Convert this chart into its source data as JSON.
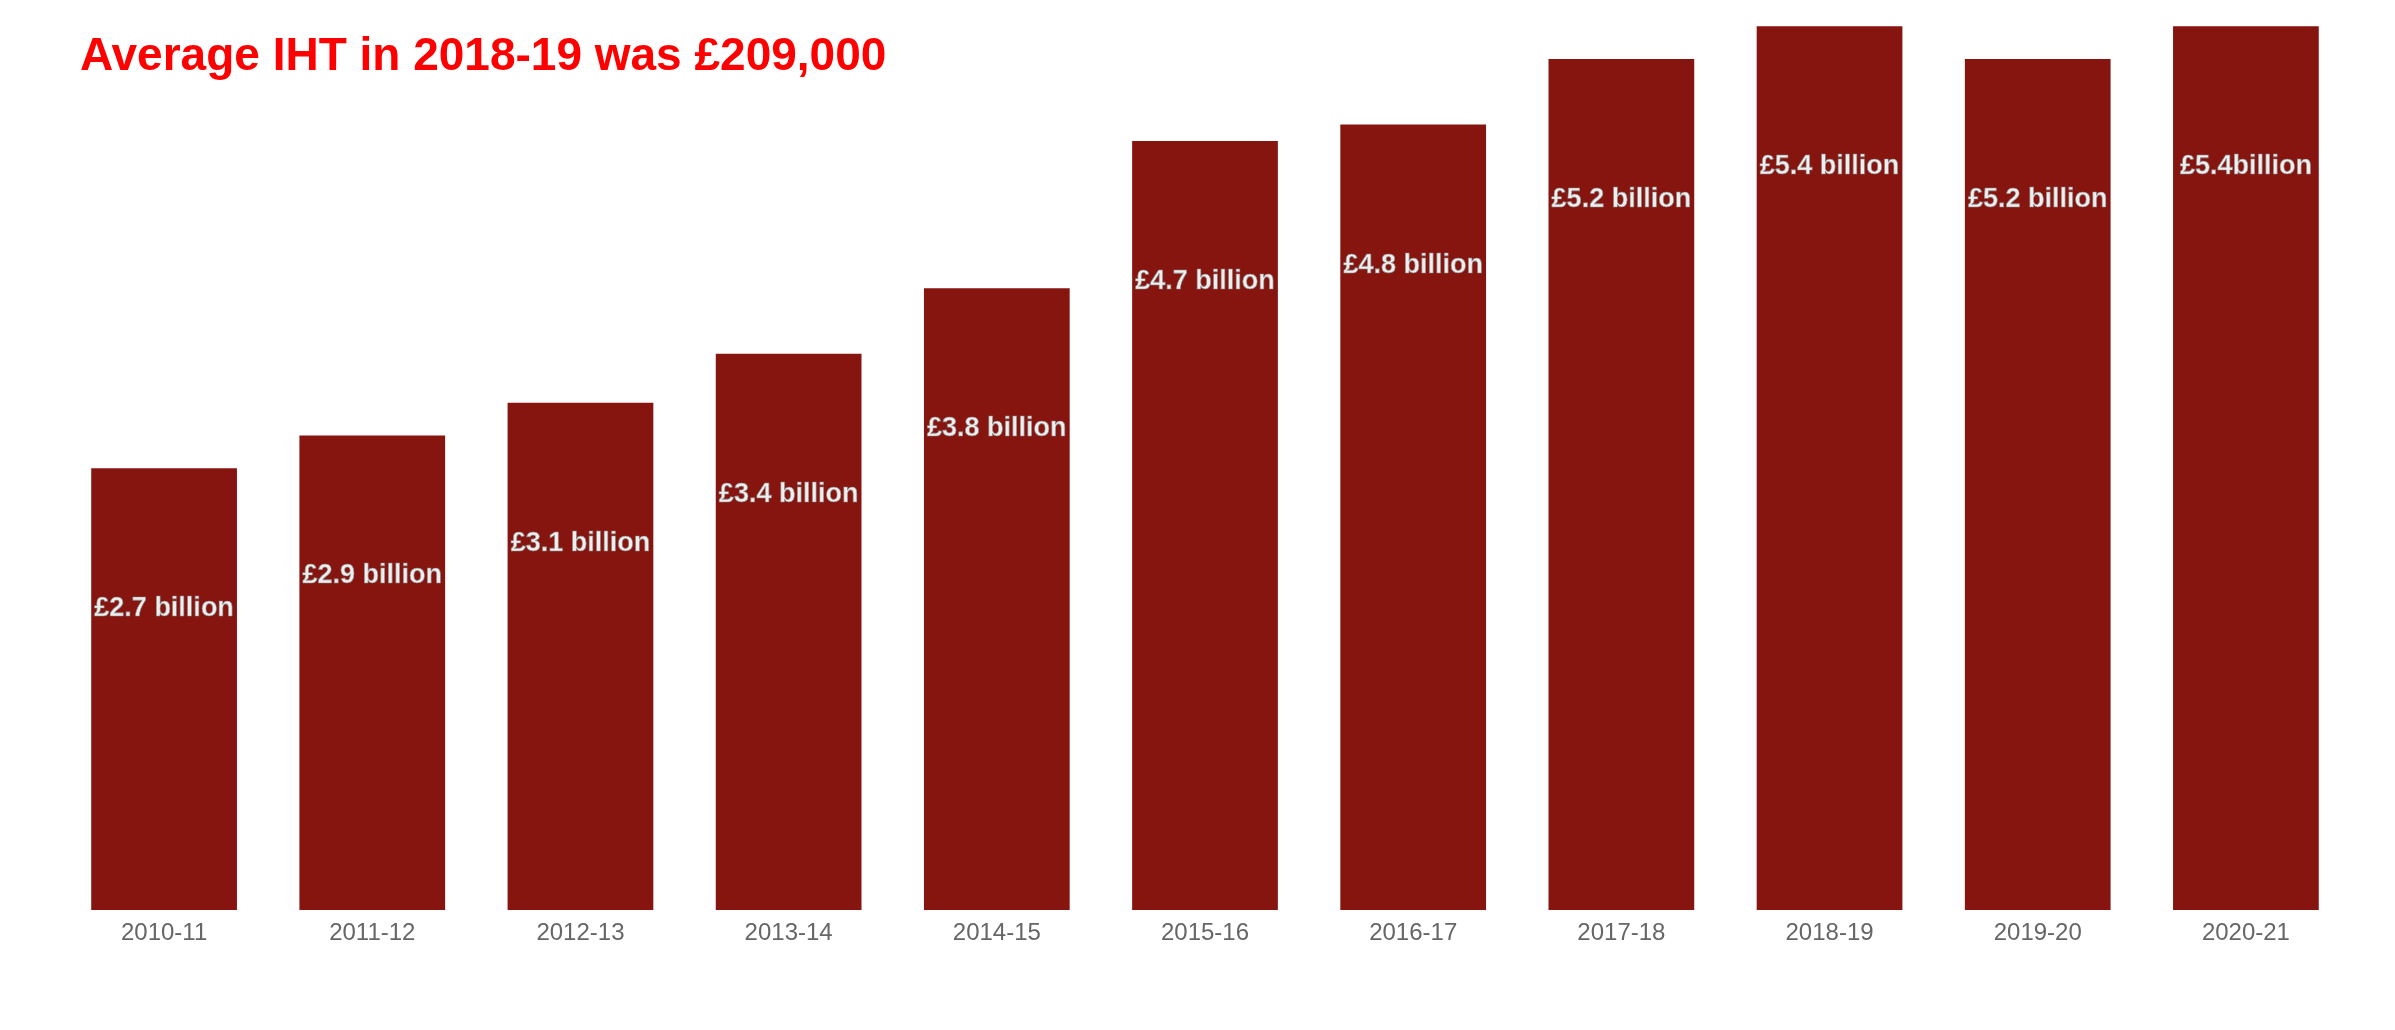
{
  "chart_data": {
    "type": "bar",
    "title": "Average IHT in  2018-19 was £209,000",
    "categories": [
      "2010-11",
      "2011-12",
      "2012-13",
      "2013-14",
      "2014-15",
      "2015-16",
      "2016-17",
      "2017-18",
      "2018-19",
      "2019-20",
      "2020-21"
    ],
    "values": [
      2.7,
      2.9,
      3.1,
      3.4,
      3.8,
      4.7,
      4.8,
      5.2,
      5.4,
      5.2,
      5.4
    ],
    "value_labels": [
      "£2.7 billion",
      "£2.9 billion",
      "£3.1 billion",
      "£3.4 billion",
      "£3.8 billion",
      "£4.7 billion",
      "£4.8 billion",
      "£5.2 billion",
      "£5.4 billion",
      "£5.2 billion",
      "£5.4billion"
    ],
    "color": "#861510"
  }
}
